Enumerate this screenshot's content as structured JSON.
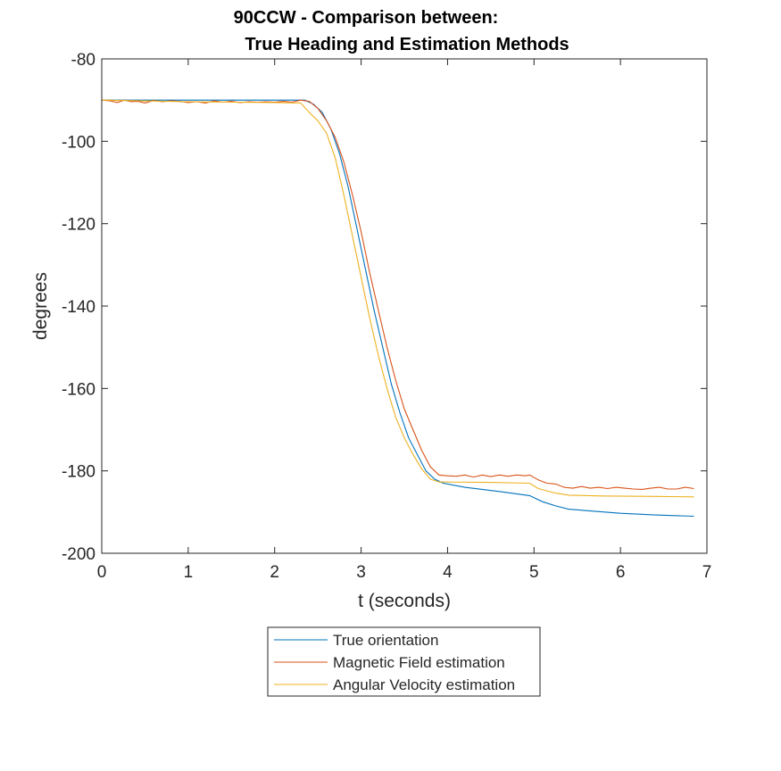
{
  "chart_data": {
    "type": "line",
    "title_line1": "90CCW - Comparison between:",
    "title_line2": "True Heading and Estimation Methods",
    "xlabel": "t (seconds)",
    "ylabel": "degrees",
    "xlim": [
      0,
      7
    ],
    "ylim": [
      -200,
      -80
    ],
    "xticks": [
      0,
      1,
      2,
      3,
      4,
      5,
      6,
      7
    ],
    "yticks": [
      -80,
      -100,
      -120,
      -140,
      -160,
      -180,
      -200
    ],
    "grid": false,
    "legend_position": "bottom-outside",
    "series": [
      {
        "name": "True orientation",
        "color": "#0072BD",
        "points": [
          [
            0,
            -90
          ],
          [
            0.5,
            -90
          ],
          [
            1,
            -90
          ],
          [
            1.5,
            -90
          ],
          [
            2.2,
            -90
          ],
          [
            2.35,
            -90
          ],
          [
            2.45,
            -91
          ],
          [
            2.55,
            -93
          ],
          [
            2.65,
            -97
          ],
          [
            2.75,
            -103
          ],
          [
            2.85,
            -111
          ],
          [
            2.95,
            -121
          ],
          [
            3.05,
            -131
          ],
          [
            3.15,
            -141
          ],
          [
            3.25,
            -150
          ],
          [
            3.35,
            -159
          ],
          [
            3.45,
            -166
          ],
          [
            3.55,
            -172
          ],
          [
            3.65,
            -176
          ],
          [
            3.75,
            -180
          ],
          [
            3.85,
            -182
          ],
          [
            3.95,
            -183
          ],
          [
            4.2,
            -184
          ],
          [
            4.6,
            -185
          ],
          [
            4.95,
            -186
          ],
          [
            5.1,
            -187.5
          ],
          [
            5.25,
            -188.5
          ],
          [
            5.4,
            -189.3
          ],
          [
            5.7,
            -189.8
          ],
          [
            6.0,
            -190.3
          ],
          [
            6.4,
            -190.7
          ],
          [
            6.85,
            -191
          ]
        ]
      },
      {
        "name": "Magnetic Field estimation",
        "color": "#D95319",
        "points": [
          [
            0,
            -90
          ],
          [
            0.1,
            -90.2
          ],
          [
            0.18,
            -90.6
          ],
          [
            0.26,
            -90
          ],
          [
            0.34,
            -90.4
          ],
          [
            0.42,
            -90.3
          ],
          [
            0.5,
            -90.7
          ],
          [
            0.6,
            -90.1
          ],
          [
            0.7,
            -90.4
          ],
          [
            0.8,
            -90.2
          ],
          [
            0.9,
            -90.3
          ],
          [
            1.0,
            -90.6
          ],
          [
            1.1,
            -90.4
          ],
          [
            1.2,
            -90.7
          ],
          [
            1.3,
            -90.2
          ],
          [
            1.4,
            -90.5
          ],
          [
            1.5,
            -90.3
          ],
          [
            1.6,
            -90.6
          ],
          [
            1.7,
            -90.4
          ],
          [
            1.8,
            -90.5
          ],
          [
            1.9,
            -90.4
          ],
          [
            2.0,
            -90.5
          ],
          [
            2.1,
            -90.3
          ],
          [
            2.2,
            -90.5
          ],
          [
            2.3,
            -90
          ],
          [
            2.4,
            -90.3
          ],
          [
            2.5,
            -92
          ],
          [
            2.6,
            -95
          ],
          [
            2.7,
            -99
          ],
          [
            2.8,
            -105
          ],
          [
            2.9,
            -113
          ],
          [
            3.0,
            -122
          ],
          [
            3.1,
            -132
          ],
          [
            3.2,
            -141
          ],
          [
            3.3,
            -150
          ],
          [
            3.4,
            -158
          ],
          [
            3.5,
            -165
          ],
          [
            3.6,
            -170
          ],
          [
            3.7,
            -175
          ],
          [
            3.8,
            -179
          ],
          [
            3.9,
            -181
          ],
          [
            4.0,
            -181.2
          ],
          [
            4.1,
            -181.3
          ],
          [
            4.2,
            -181
          ],
          [
            4.3,
            -181.5
          ],
          [
            4.4,
            -181
          ],
          [
            4.5,
            -181.4
          ],
          [
            4.6,
            -181
          ],
          [
            4.7,
            -181.3
          ],
          [
            4.8,
            -181
          ],
          [
            4.9,
            -181.2
          ],
          [
            4.95,
            -181
          ],
          [
            5.05,
            -182.2
          ],
          [
            5.15,
            -183
          ],
          [
            5.25,
            -183.2
          ],
          [
            5.35,
            -184
          ],
          [
            5.45,
            -184.2
          ],
          [
            5.55,
            -183.8
          ],
          [
            5.65,
            -184.2
          ],
          [
            5.75,
            -184
          ],
          [
            5.85,
            -184.3
          ],
          [
            5.95,
            -184
          ],
          [
            6.05,
            -184.2
          ],
          [
            6.15,
            -184.4
          ],
          [
            6.25,
            -184.5
          ],
          [
            6.35,
            -184.2
          ],
          [
            6.45,
            -184
          ],
          [
            6.55,
            -184.4
          ],
          [
            6.65,
            -184.4
          ],
          [
            6.75,
            -184
          ],
          [
            6.85,
            -184.3
          ]
        ]
      },
      {
        "name": "Angular Velocity estimation",
        "color": "#EDB120",
        "points": [
          [
            0,
            -90
          ],
          [
            0.5,
            -90.2
          ],
          [
            1,
            -90.4
          ],
          [
            1.5,
            -90.5
          ],
          [
            2.0,
            -90.6
          ],
          [
            2.3,
            -90.7
          ],
          [
            2.4,
            -93
          ],
          [
            2.5,
            -95
          ],
          [
            2.6,
            -98
          ],
          [
            2.7,
            -104
          ],
          [
            2.8,
            -113
          ],
          [
            2.9,
            -123
          ],
          [
            3.0,
            -133
          ],
          [
            3.1,
            -143
          ],
          [
            3.2,
            -152
          ],
          [
            3.3,
            -160
          ],
          [
            3.4,
            -167
          ],
          [
            3.5,
            -172
          ],
          [
            3.6,
            -176
          ],
          [
            3.7,
            -179.5
          ],
          [
            3.8,
            -182
          ],
          [
            3.9,
            -182.7
          ],
          [
            4.5,
            -182.8
          ],
          [
            4.95,
            -183
          ],
          [
            5.05,
            -184.3
          ],
          [
            5.25,
            -185.4
          ],
          [
            5.4,
            -185.9
          ],
          [
            5.8,
            -186.1
          ],
          [
            6.4,
            -186.2
          ],
          [
            6.85,
            -186.3
          ]
        ]
      }
    ]
  }
}
